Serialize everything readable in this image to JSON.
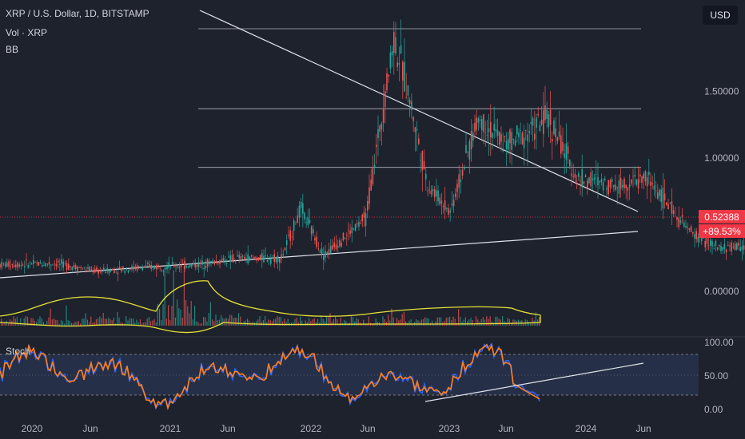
{
  "header": {
    "symbol_line": "XRP / U.S. Dollar, 1D, BITSTAMP",
    "vol_label": "Vol · XRP",
    "bb_label": "BB",
    "currency": "USD"
  },
  "price_badge": {
    "price": "0.52388",
    "change": "+89.53%"
  },
  "stoch_label": "Stoch",
  "chart_data": [
    {
      "type": "line",
      "title": "XRP / U.S. Dollar, 1D, BITSTAMP",
      "y_ticks": [
        "1.50000",
        "1.00000",
        "0.00000"
      ],
      "x_ticks": [
        "2020",
        "Jun",
        "2021",
        "Jun",
        "2022",
        "Jun",
        "2023",
        "Jun",
        "2024",
        "Jun"
      ],
      "last_price": 0.52388,
      "last_change": "+89.53%",
      "price_path": [
        {
          "x": 2019.9,
          "y": 0.2
        },
        {
          "x": 2020.1,
          "y": 0.21
        },
        {
          "x": 2020.25,
          "y": 0.15
        },
        {
          "x": 2020.4,
          "y": 0.18
        },
        {
          "x": 2020.6,
          "y": 0.2
        },
        {
          "x": 2020.75,
          "y": 0.25
        },
        {
          "x": 2020.9,
          "y": 0.25
        },
        {
          "x": 2020.97,
          "y": 0.62
        },
        {
          "x": 2021.05,
          "y": 0.27
        },
        {
          "x": 2021.12,
          "y": 0.4
        },
        {
          "x": 2021.2,
          "y": 0.55
        },
        {
          "x": 2021.3,
          "y": 1.9
        },
        {
          "x": 2021.35,
          "y": 1.5
        },
        {
          "x": 2021.42,
          "y": 0.8
        },
        {
          "x": 2021.5,
          "y": 0.6
        },
        {
          "x": 2021.6,
          "y": 1.3
        },
        {
          "x": 2021.7,
          "y": 1.1
        },
        {
          "x": 2021.85,
          "y": 1.3
        },
        {
          "x": 2021.95,
          "y": 0.85
        },
        {
          "x": 2022.1,
          "y": 0.8
        },
        {
          "x": 2022.2,
          "y": 0.85
        },
        {
          "x": 2022.35,
          "y": 0.45
        },
        {
          "x": 2022.45,
          "y": 0.32
        },
        {
          "x": 2022.6,
          "y": 0.35
        },
        {
          "x": 2022.75,
          "y": 0.48
        },
        {
          "x": 2022.85,
          "y": 0.37
        },
        {
          "x": 2023.0,
          "y": 0.35
        },
        {
          "x": 2023.15,
          "y": 0.38
        },
        {
          "x": 2023.3,
          "y": 0.5
        },
        {
          "x": 2023.45,
          "y": 0.48
        },
        {
          "x": 2023.52,
          "y": 0.49
        },
        {
          "x": 2023.55,
          "y": 0.82
        },
        {
          "x": 2023.62,
          "y": 0.72
        },
        {
          "x": 2023.7,
          "y": 0.52
        }
      ],
      "projection_path": [
        {
          "x": 2023.7,
          "y": 0.52
        },
        {
          "x": 2023.74,
          "y": 0.25
        },
        {
          "x": 2023.8,
          "y": 0.4
        },
        {
          "x": 2023.88,
          "y": 0.93
        }
      ],
      "horizontal_levels": [
        1.97,
        1.37,
        0.93
      ],
      "stochastic_oscillator": {
        "y_ticks": [
          "100.00",
          "50.00",
          "0.00"
        ],
        "band_upper": 80,
        "band_lower": 20
      }
    }
  ]
}
